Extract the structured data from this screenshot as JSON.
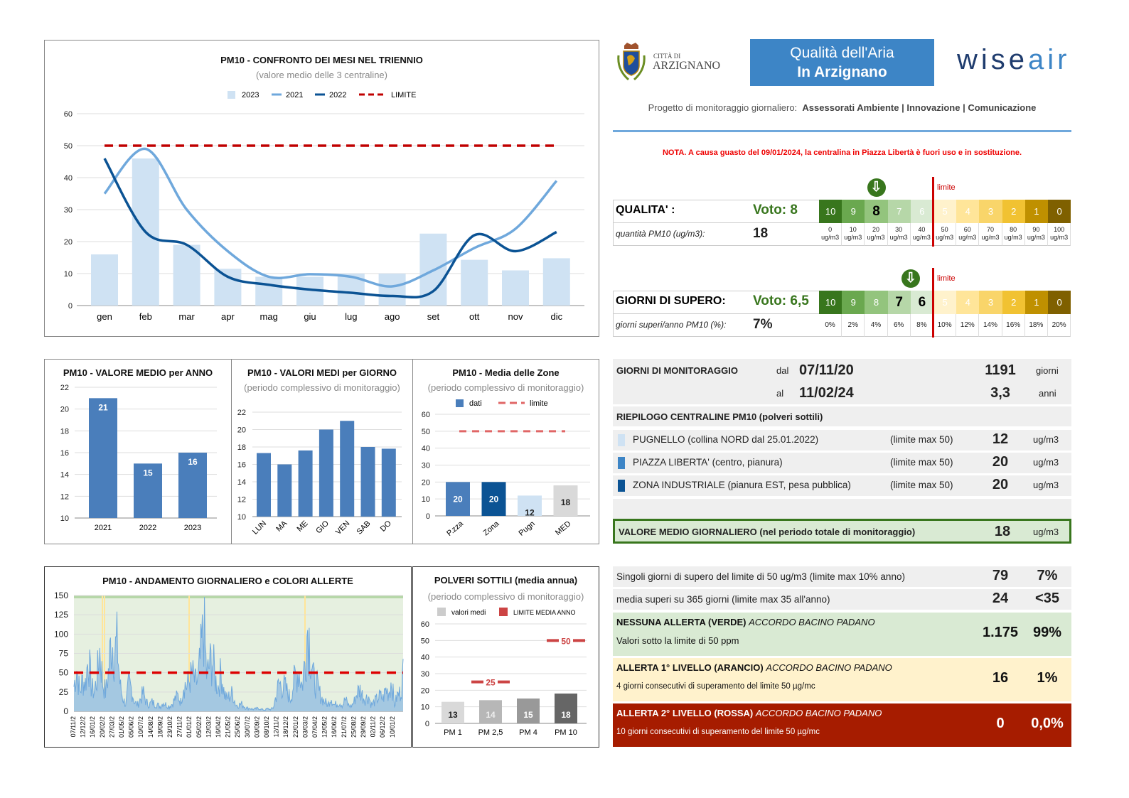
{
  "header": {
    "city_small": "CITTÀ DI",
    "city": "ARZIGNANO",
    "title1": "Qualità dell'Aria",
    "title2": "In Arzignano",
    "brand_a": "wise",
    "brand_b": "air",
    "project": "Progetto di monitoraggio giornaliero:",
    "project_bold": "Assessorati Ambiente | Innovazione | Comunicazione",
    "note": "NOTA. A causa guasto del 09/01/2024, la centralina in Piazza Libertà è fuori uso e in sostituzione."
  },
  "quality": {
    "label": "QUALITA' :",
    "vote": "Voto: 8",
    "sub_label": "quantità PM10 (ug/m3):",
    "value": "18",
    "limit": "limite",
    "grades": [
      "10",
      "9",
      "8",
      "7",
      "6",
      "5",
      "4",
      "3",
      "2",
      "1",
      "0"
    ],
    "highlight": [
      2
    ],
    "thresholds": [
      "0",
      "10",
      "20",
      "30",
      "40",
      "50",
      "60",
      "70",
      "80",
      "90",
      "100"
    ],
    "unit": "ug/m3"
  },
  "supero": {
    "label": "GIORNI DI SUPERO:",
    "vote": "Voto: 6,5",
    "sub_label": "giorni superi/anno PM10 (%):",
    "value": "7%",
    "limit": "limite",
    "grades": [
      "10",
      "9",
      "8",
      "7",
      "6",
      "5",
      "4",
      "3",
      "2",
      "1",
      "0"
    ],
    "highlight": [
      3,
      4
    ],
    "thresholds": [
      "0%",
      "2%",
      "4%",
      "6%",
      "8%",
      "10%",
      "12%",
      "14%",
      "16%",
      "18%",
      "20%"
    ]
  },
  "scale_colors": [
    "#38761d",
    "#6aa84f",
    "#93c47d",
    "#b6d7a8",
    "#d9ead3",
    "#fff2cc",
    "#ffe599",
    "#f9d56a",
    "#f1c232",
    "#bf9000",
    "#7f6000"
  ],
  "monitoring": {
    "label": "GIORNI DI MONITORAGGIO",
    "dal": "dal",
    "from": "07/11/20",
    "al": "al",
    "to": "11/02/24",
    "days": "1191",
    "days_unit": "giorni",
    "years": "3,3",
    "years_unit": "anni"
  },
  "stations": {
    "title": "RIEPILOGO CENTRALINE PM10 (polveri sottili)",
    "items": [
      {
        "name": "PUGNELLO (collina NORD dal 25.01.2022)",
        "limit": "(limite max 50)",
        "value": "12",
        "unit": "ug/m3",
        "color": "#cfe2f3"
      },
      {
        "name": "PIAZZA LIBERTA' (centro, pianura)",
        "limit": "(limite max 50)",
        "value": "20",
        "unit": "ug/m3",
        "color": "#3d85c6"
      },
      {
        "name": "ZONA INDUSTRIALE (pianura EST, pesa pubblica)",
        "limit": "(limite max 50)",
        "value": "20",
        "unit": "ug/m3",
        "color": "#0b5394"
      }
    ]
  },
  "avg": {
    "label": "VALORE MEDIO GIORNALIERO (nel periodo totale di monitoraggio)",
    "value": "18",
    "unit": "ug/m3"
  },
  "exceed": [
    {
      "label": "Singoli giorni di supero del limite di 50 ug/m3 (limite max 10% anno)",
      "v1": "79",
      "v2": "7%"
    },
    {
      "label": "media superi su 365 giorni (limite max 35 all'anno)",
      "v1": "24",
      "v2": "<35"
    }
  ],
  "alerts": [
    {
      "title": "NESSUNA ALLERTA (VERDE)",
      "accord": "ACCORDO BACINO PADANO",
      "desc": "Valori sotto la limite di 50 ppm",
      "v1": "1.175",
      "v2": "99%"
    },
    {
      "title": "ALLERTA 1° LIVELLO (ARANCIO)",
      "accord": "ACCORDO BACINO PADANO",
      "desc": "4 giorni consecutivi di superamento del limite 50 µg/mc",
      "v1": "16",
      "v2": "1%"
    },
    {
      "title": "ALLERTA 2° LIVELLO (ROSSA)",
      "accord": "ACCORDO BACINO PADANO",
      "desc": "10 giorni consecutivi di superamento del limite 50 µg/mc",
      "v1": "0",
      "v2": "0,0%"
    }
  ],
  "chart_data": [
    {
      "id": "months",
      "type": "bar",
      "title": "PM10 - CONFRONTO DEI MESI NEL TRIENNIO",
      "subtitle": "(valore medio delle 3 centraline)",
      "categories": [
        "gen",
        "feb",
        "mar",
        "apr",
        "mag",
        "giu",
        "lug",
        "ago",
        "set",
        "ott",
        "nov",
        "dic"
      ],
      "ylim": [
        0,
        60
      ],
      "yticks": [
        0,
        10,
        20,
        30,
        40,
        50,
        60
      ],
      "legend": [
        "2023",
        "2021",
        "2022",
        "LIMITE"
      ],
      "series": [
        {
          "name": "2023",
          "type": "bar",
          "values": [
            16,
            46,
            19,
            11.5,
            9,
            9,
            10,
            10,
            22.5,
            14.3,
            11,
            14.8
          ]
        },
        {
          "name": "2021",
          "type": "line",
          "values": [
            35,
            49,
            30,
            17,
            9,
            9.8,
            9,
            6,
            11,
            18,
            24,
            39
          ]
        },
        {
          "name": "2022",
          "type": "line",
          "values": [
            46,
            23,
            19,
            9,
            6.5,
            5,
            4,
            3,
            4.5,
            22,
            17,
            23
          ]
        },
        {
          "name": "LIMITE",
          "type": "dashed",
          "values": [
            50,
            50,
            50,
            50,
            50,
            50,
            50,
            50,
            50,
            50,
            50,
            50
          ]
        }
      ]
    },
    {
      "id": "years",
      "type": "bar",
      "title": "PM10 - VALORE MEDIO per ANNO",
      "categories": [
        "2021",
        "2022",
        "2023"
      ],
      "values": [
        21,
        15,
        16
      ],
      "labels": [
        "21",
        "15",
        "16"
      ],
      "ylim": [
        10,
        22
      ],
      "yticks": [
        10,
        12,
        14,
        16,
        18,
        20,
        22
      ]
    },
    {
      "id": "days",
      "type": "bar",
      "title": "PM10 - VALORI MEDI per GIORNO",
      "subtitle": "(periodo complessivo di monitoraggio)",
      "categories": [
        "LUN",
        "MA",
        "ME",
        "GIO",
        "VEN",
        "SAB",
        "DO"
      ],
      "values": [
        17.3,
        16,
        17.6,
        20,
        21,
        18,
        17.8
      ],
      "ylim": [
        10,
        22
      ],
      "yticks": [
        10,
        12,
        14,
        16,
        18,
        20,
        22
      ]
    },
    {
      "id": "zones",
      "type": "bar",
      "title": "PM10 - Media delle Zone",
      "subtitle": "(periodo complessivo di monitoraggio)",
      "legend": [
        "dati",
        "limite"
      ],
      "categories": [
        "P.zza",
        "Zona",
        "Pugn",
        "MED"
      ],
      "values": [
        20,
        20,
        12,
        18
      ],
      "labels": [
        "20",
        "20",
        "12",
        "18"
      ],
      "limit": 50,
      "ylim": [
        0,
        60
      ],
      "yticks": [
        0,
        10,
        20,
        30,
        40,
        50,
        60
      ]
    },
    {
      "id": "daily",
      "type": "area",
      "title": "PM10 - ANDAMENTO GIORNALIERO e COLORI ALLERTE",
      "ylim": [
        0,
        150
      ],
      "yticks": [
        0,
        25,
        50,
        75,
        100,
        125,
        150
      ],
      "limit": 50,
      "xticks": [
        "07/11/2",
        "12/12/2",
        "16/01/2",
        "20/02/2",
        "27/03/2",
        "01/05/2",
        "05/06/2",
        "10/07/2",
        "14/08/2",
        "18/09/2",
        "23/10/2",
        "27/11/2",
        "01/01/2",
        "05/02/2",
        "12/03/2",
        "16/04/2",
        "21/05/2",
        "25/06/2",
        "30/07/2",
        "03/09/2",
        "08/10/2",
        "12/11/2",
        "18/12/2",
        "22/01/2",
        "03/03/2",
        "07/04/2",
        "12/05/2",
        "16/06/2",
        "21/07/2",
        "25/08/2",
        "29/09/2",
        "02/11/2",
        "06/12/2",
        "10/01/2"
      ],
      "values_sampled": [
        40,
        70,
        30,
        50,
        45,
        90,
        40,
        30,
        55,
        100,
        45,
        30,
        65,
        120,
        95,
        108,
        40,
        20,
        10,
        45,
        35,
        15,
        10,
        20,
        30,
        15,
        10,
        15,
        12,
        10,
        8,
        15,
        10,
        8,
        12,
        20,
        25,
        15,
        45,
        40,
        50,
        60,
        45,
        50,
        93,
        140,
        55,
        75,
        85,
        50,
        40,
        65,
        30,
        20,
        25,
        30,
        10,
        10,
        12,
        8,
        5,
        5,
        3,
        4,
        5,
        3,
        2,
        4,
        3,
        5,
        25,
        45,
        40,
        40,
        30,
        20,
        45,
        60,
        65,
        40,
        80,
        140,
        95,
        50,
        45,
        30,
        20,
        15,
        10,
        25,
        10,
        12,
        15,
        10,
        20,
        10,
        8,
        15,
        30,
        35,
        25,
        20,
        25,
        10,
        15,
        20,
        25,
        20,
        35,
        30,
        50,
        10,
        25,
        30,
        60
      ]
    },
    {
      "id": "polveri",
      "type": "bar",
      "title": "POLVERI SOTTILI (media annua)",
      "subtitle": "(periodo complessivo di monitoraggio)",
      "legend": [
        "valori medi",
        "LIMITE MEDIA ANNO"
      ],
      "categories": [
        "PM 1",
        "PM 2,5",
        "PM 4",
        "PM 10"
      ],
      "values": [
        13,
        14,
        15,
        18
      ],
      "labels": [
        "13",
        "14",
        "15",
        "18"
      ],
      "limits": [
        null,
        25,
        null,
        50
      ],
      "limit_labels": [
        "",
        "25",
        "",
        "50"
      ],
      "ylim": [
        0,
        60
      ],
      "yticks": [
        0,
        10,
        20,
        30,
        40,
        50,
        60
      ]
    }
  ]
}
